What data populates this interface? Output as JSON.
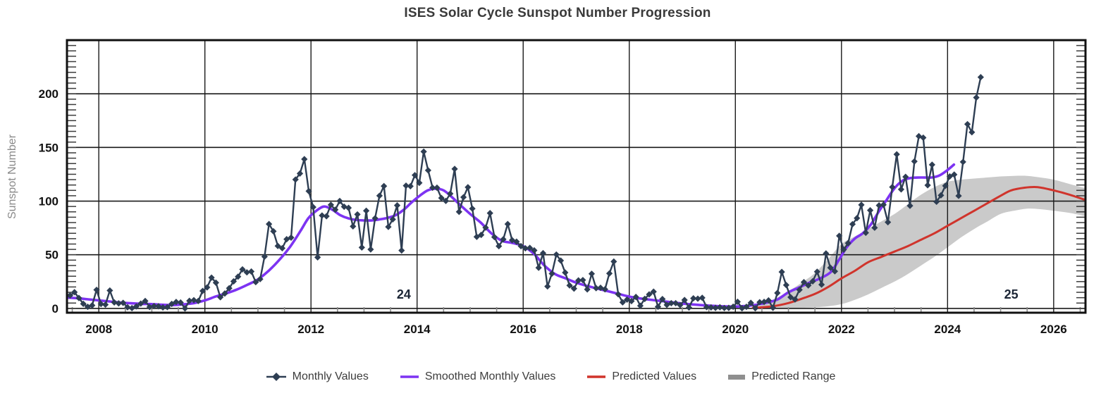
{
  "title": "ISES Solar Cycle Sunspot Number Progression",
  "colors": {
    "monthly": "#2e3e53",
    "smoothed": "#7d33f2",
    "predicted": "#d0342c",
    "band": "#cacaca",
    "band_legend": "#8f8f8f",
    "grid": "#1a1a1a",
    "tick_label": "#111111",
    "annotation": "#1c2636"
  },
  "legend": {
    "items": [
      {
        "label": "Monthly Values"
      },
      {
        "label": "Smoothed Monthly Values"
      },
      {
        "label": "Predicted Values"
      },
      {
        "label": "Predicted Range"
      }
    ]
  },
  "chart_data": {
    "type": "line",
    "title": "ISES Solar Cycle Sunspot Number Progression",
    "xlabel": "",
    "ylabel": "Sunspot Number",
    "xlim": [
      2007.4,
      2026.6
    ],
    "ylim": [
      -4,
      250
    ],
    "x_ticks_major": [
      2008,
      2010,
      2012,
      2014,
      2016,
      2018,
      2020,
      2022,
      2024,
      2026
    ],
    "x_minor_step": 0.5,
    "y_ticks_major": [
      0,
      50,
      100,
      150,
      200
    ],
    "y_minor_step": 5,
    "grid": "major-on",
    "legend_position": "bottom",
    "annotations": [
      {
        "text": "24",
        "x": 2013.75,
        "y": 13
      },
      {
        "text": "25",
        "x": 2025.2,
        "y": 13
      }
    ],
    "series": [
      {
        "name": "Monthly Values",
        "type": "line+diamond-marker",
        "start_year": 2007,
        "start_month": 6,
        "values": [
          12.1,
          15.1,
          9.7,
          4.3,
          1.5,
          2.8,
          17.3,
          4.1,
          3.5,
          16.7,
          5.6,
          4.7,
          5.2,
          1.1,
          0.3,
          1.9,
          4.5,
          6.9,
          1.3,
          2.2,
          2.0,
          0.9,
          1.2,
          4.2,
          6.0,
          5.5,
          0.0,
          7.1,
          7.7,
          6.9,
          16.3,
          19.6,
          28.7,
          24.0,
          10.4,
          13.9,
          18.8,
          25.2,
          29.6,
          36.4,
          33.6,
          34.4,
          24.5,
          27.3,
          48.3,
          78.6,
          71.9,
          58.2,
          56.1,
          64.5,
          66.0,
          120.1,
          125.7,
          139.1,
          109.3,
          94.4,
          47.6,
          86.6,
          85.9,
          96.5,
          92.0,
          100.1,
          94.8,
          93.7,
          76.5,
          87.6,
          56.8,
          91.0,
          55.0,
          84.0,
          105.0,
          114.0,
          76.0,
          83.0,
          96.0,
          54.0,
          114.4,
          113.9,
          124.2,
          117.0,
          146.1,
          128.7,
          112.5,
          112.5,
          102.9,
          100.2,
          106.9,
          130.0,
          90.0,
          103.6,
          112.9,
          93.0,
          66.7,
          68.5,
          75.3,
          88.8,
          66.5,
          58.0,
          64.4,
          78.6,
          63.6,
          62.2,
          58.0,
          56.0,
          56.4,
          54.1,
          37.9,
          51.5,
          20.5,
          32.4,
          50.2,
          44.6,
          33.4,
          21.4,
          18.5,
          26.1,
          26.4,
          17.7,
          32.3,
          18.9,
          19.2,
          17.8,
          32.6,
          43.7,
          13.2,
          5.7,
          8.2,
          6.8,
          10.7,
          2.5,
          8.9,
          13.1,
          15.6,
          1.6,
          8.7,
          3.3,
          4.9,
          4.9,
          3.1,
          7.8,
          0.8,
          9.4,
          9.1,
          9.9,
          1.2,
          0.9,
          0.5,
          1.1,
          0.4,
          0.5,
          1.6,
          6.2,
          0.2,
          1.5,
          5.2,
          0.2,
          5.8,
          6.1,
          7.5,
          0.6,
          14.4,
          34.0,
          21.8,
          10.4,
          8.4,
          17.3,
          24.5,
          21.4,
          25.3,
          34.2,
          22.2,
          51.2,
          37.9,
          34.6,
          67.6,
          54.8,
          60.8,
          78.5,
          84.1,
          96.5,
          70.5,
          91.4,
          75.2,
          96.0,
          96.6,
          80.3,
          113.1,
          143.6,
          110.9,
          122.6,
          95.7,
          137.0,
          160.5,
          159.1,
          114.8,
          133.9,
          99.4,
          105.4,
          114.2,
          123.0,
          124.7,
          104.9,
          136.5,
          171.7,
          164.2,
          196.5,
          215.5
        ]
      },
      {
        "name": "Smoothed Monthly Values",
        "type": "smooth-line",
        "points": [
          [
            2007.42,
            10
          ],
          [
            2007.6,
            9.5
          ],
          [
            2007.8,
            8.5
          ],
          [
            2008.0,
            7.5
          ],
          [
            2008.2,
            6.5
          ],
          [
            2008.4,
            5.5
          ],
          [
            2008.6,
            4.8
          ],
          [
            2008.8,
            4.3
          ],
          [
            2009.0,
            4.0
          ],
          [
            2009.2,
            3.4
          ],
          [
            2009.4,
            3.1
          ],
          [
            2009.6,
            3.8
          ],
          [
            2009.8,
            5.0
          ],
          [
            2010.0,
            7.5
          ],
          [
            2010.2,
            11
          ],
          [
            2010.4,
            14
          ],
          [
            2010.6,
            17.5
          ],
          [
            2010.8,
            22
          ],
          [
            2011.0,
            27
          ],
          [
            2011.2,
            35
          ],
          [
            2011.4,
            45
          ],
          [
            2011.6,
            57
          ],
          [
            2011.8,
            72
          ],
          [
            2011.95,
            84
          ],
          [
            2012.1,
            91
          ],
          [
            2012.25,
            95
          ],
          [
            2012.4,
            92
          ],
          [
            2012.55,
            87
          ],
          [
            2012.7,
            84
          ],
          [
            2012.85,
            82.5
          ],
          [
            2013.0,
            82
          ],
          [
            2013.15,
            82
          ],
          [
            2013.3,
            83
          ],
          [
            2013.45,
            84.5
          ],
          [
            2013.6,
            87
          ],
          [
            2013.75,
            92
          ],
          [
            2013.9,
            99
          ],
          [
            2014.05,
            105
          ],
          [
            2014.2,
            110
          ],
          [
            2014.35,
            111.5
          ],
          [
            2014.5,
            110
          ],
          [
            2014.65,
            104
          ],
          [
            2014.8,
            97
          ],
          [
            2015.0,
            88
          ],
          [
            2015.2,
            80
          ],
          [
            2015.4,
            70
          ],
          [
            2015.6,
            63
          ],
          [
            2015.8,
            61
          ],
          [
            2016.0,
            58
          ],
          [
            2016.2,
            51
          ],
          [
            2016.4,
            40
          ],
          [
            2016.6,
            32
          ],
          [
            2016.8,
            28
          ],
          [
            2017.0,
            24
          ],
          [
            2017.2,
            21
          ],
          [
            2017.4,
            18.5
          ],
          [
            2017.6,
            16
          ],
          [
            2017.8,
            13.5
          ],
          [
            2018.0,
            11
          ],
          [
            2018.25,
            9
          ],
          [
            2018.5,
            7.5
          ],
          [
            2018.75,
            6
          ],
          [
            2019.0,
            4.5
          ],
          [
            2019.25,
            3.5
          ],
          [
            2019.5,
            2.6
          ],
          [
            2019.75,
            2.0
          ],
          [
            2020.0,
            1.8
          ],
          [
            2020.2,
            2.3
          ],
          [
            2020.4,
            3.5
          ],
          [
            2020.6,
            5.5
          ],
          [
            2020.8,
            8.5
          ],
          [
            2021.0,
            15
          ],
          [
            2021.2,
            19.5
          ],
          [
            2021.4,
            24
          ],
          [
            2021.6,
            28
          ],
          [
            2021.8,
            34
          ],
          [
            2021.95,
            45
          ],
          [
            2022.1,
            57
          ],
          [
            2022.25,
            65
          ],
          [
            2022.4,
            70
          ],
          [
            2022.55,
            78
          ],
          [
            2022.7,
            90
          ],
          [
            2022.85,
            101
          ],
          [
            2023.0,
            112
          ],
          [
            2023.15,
            119
          ],
          [
            2023.3,
            121.5
          ],
          [
            2023.5,
            122
          ],
          [
            2023.7,
            122
          ],
          [
            2023.85,
            124
          ],
          [
            2024.0,
            129
          ],
          [
            2024.12,
            134
          ]
        ]
      },
      {
        "name": "Predicted Values",
        "type": "smooth-line",
        "points": [
          [
            2020.33,
            0.5
          ],
          [
            2020.7,
            2
          ],
          [
            2021.0,
            5
          ],
          [
            2021.25,
            9
          ],
          [
            2021.5,
            13.5
          ],
          [
            2021.75,
            20
          ],
          [
            2022.0,
            28
          ],
          [
            2022.25,
            35
          ],
          [
            2022.5,
            43
          ],
          [
            2022.75,
            48
          ],
          [
            2023.0,
            53
          ],
          [
            2023.25,
            58
          ],
          [
            2023.5,
            64
          ],
          [
            2023.75,
            70
          ],
          [
            2024.0,
            77
          ],
          [
            2024.25,
            84
          ],
          [
            2024.5,
            91
          ],
          [
            2024.75,
            98
          ],
          [
            2025.0,
            105
          ],
          [
            2025.2,
            110
          ],
          [
            2025.45,
            112.5
          ],
          [
            2025.7,
            113
          ],
          [
            2026.0,
            110
          ],
          [
            2026.3,
            106
          ],
          [
            2026.6,
            101
          ]
        ]
      },
      {
        "name": "Predicted Range",
        "type": "band",
        "points": [
          [
            2020.45,
            0,
            2
          ],
          [
            2020.75,
            0,
            9
          ],
          [
            2021.0,
            0,
            16
          ],
          [
            2021.25,
            0.5,
            24
          ],
          [
            2021.5,
            1,
            33
          ],
          [
            2021.75,
            2,
            46
          ],
          [
            2022.0,
            4,
            60
          ],
          [
            2022.25,
            8,
            67
          ],
          [
            2022.5,
            13,
            74
          ],
          [
            2022.75,
            19,
            81
          ],
          [
            2023.0,
            25,
            88
          ],
          [
            2023.25,
            32,
            97
          ],
          [
            2023.5,
            40,
            106
          ],
          [
            2023.75,
            48,
            113
          ],
          [
            2024.0,
            57,
            118
          ],
          [
            2024.25,
            66,
            120
          ],
          [
            2024.5,
            74,
            121
          ],
          [
            2024.75,
            81,
            122
          ],
          [
            2025.0,
            88,
            123
          ],
          [
            2025.25,
            91,
            123.5
          ],
          [
            2025.5,
            93,
            123.5
          ],
          [
            2025.75,
            92.5,
            122
          ],
          [
            2026.0,
            91,
            120
          ],
          [
            2026.3,
            89,
            116
          ],
          [
            2026.6,
            86,
            112
          ]
        ]
      }
    ]
  }
}
